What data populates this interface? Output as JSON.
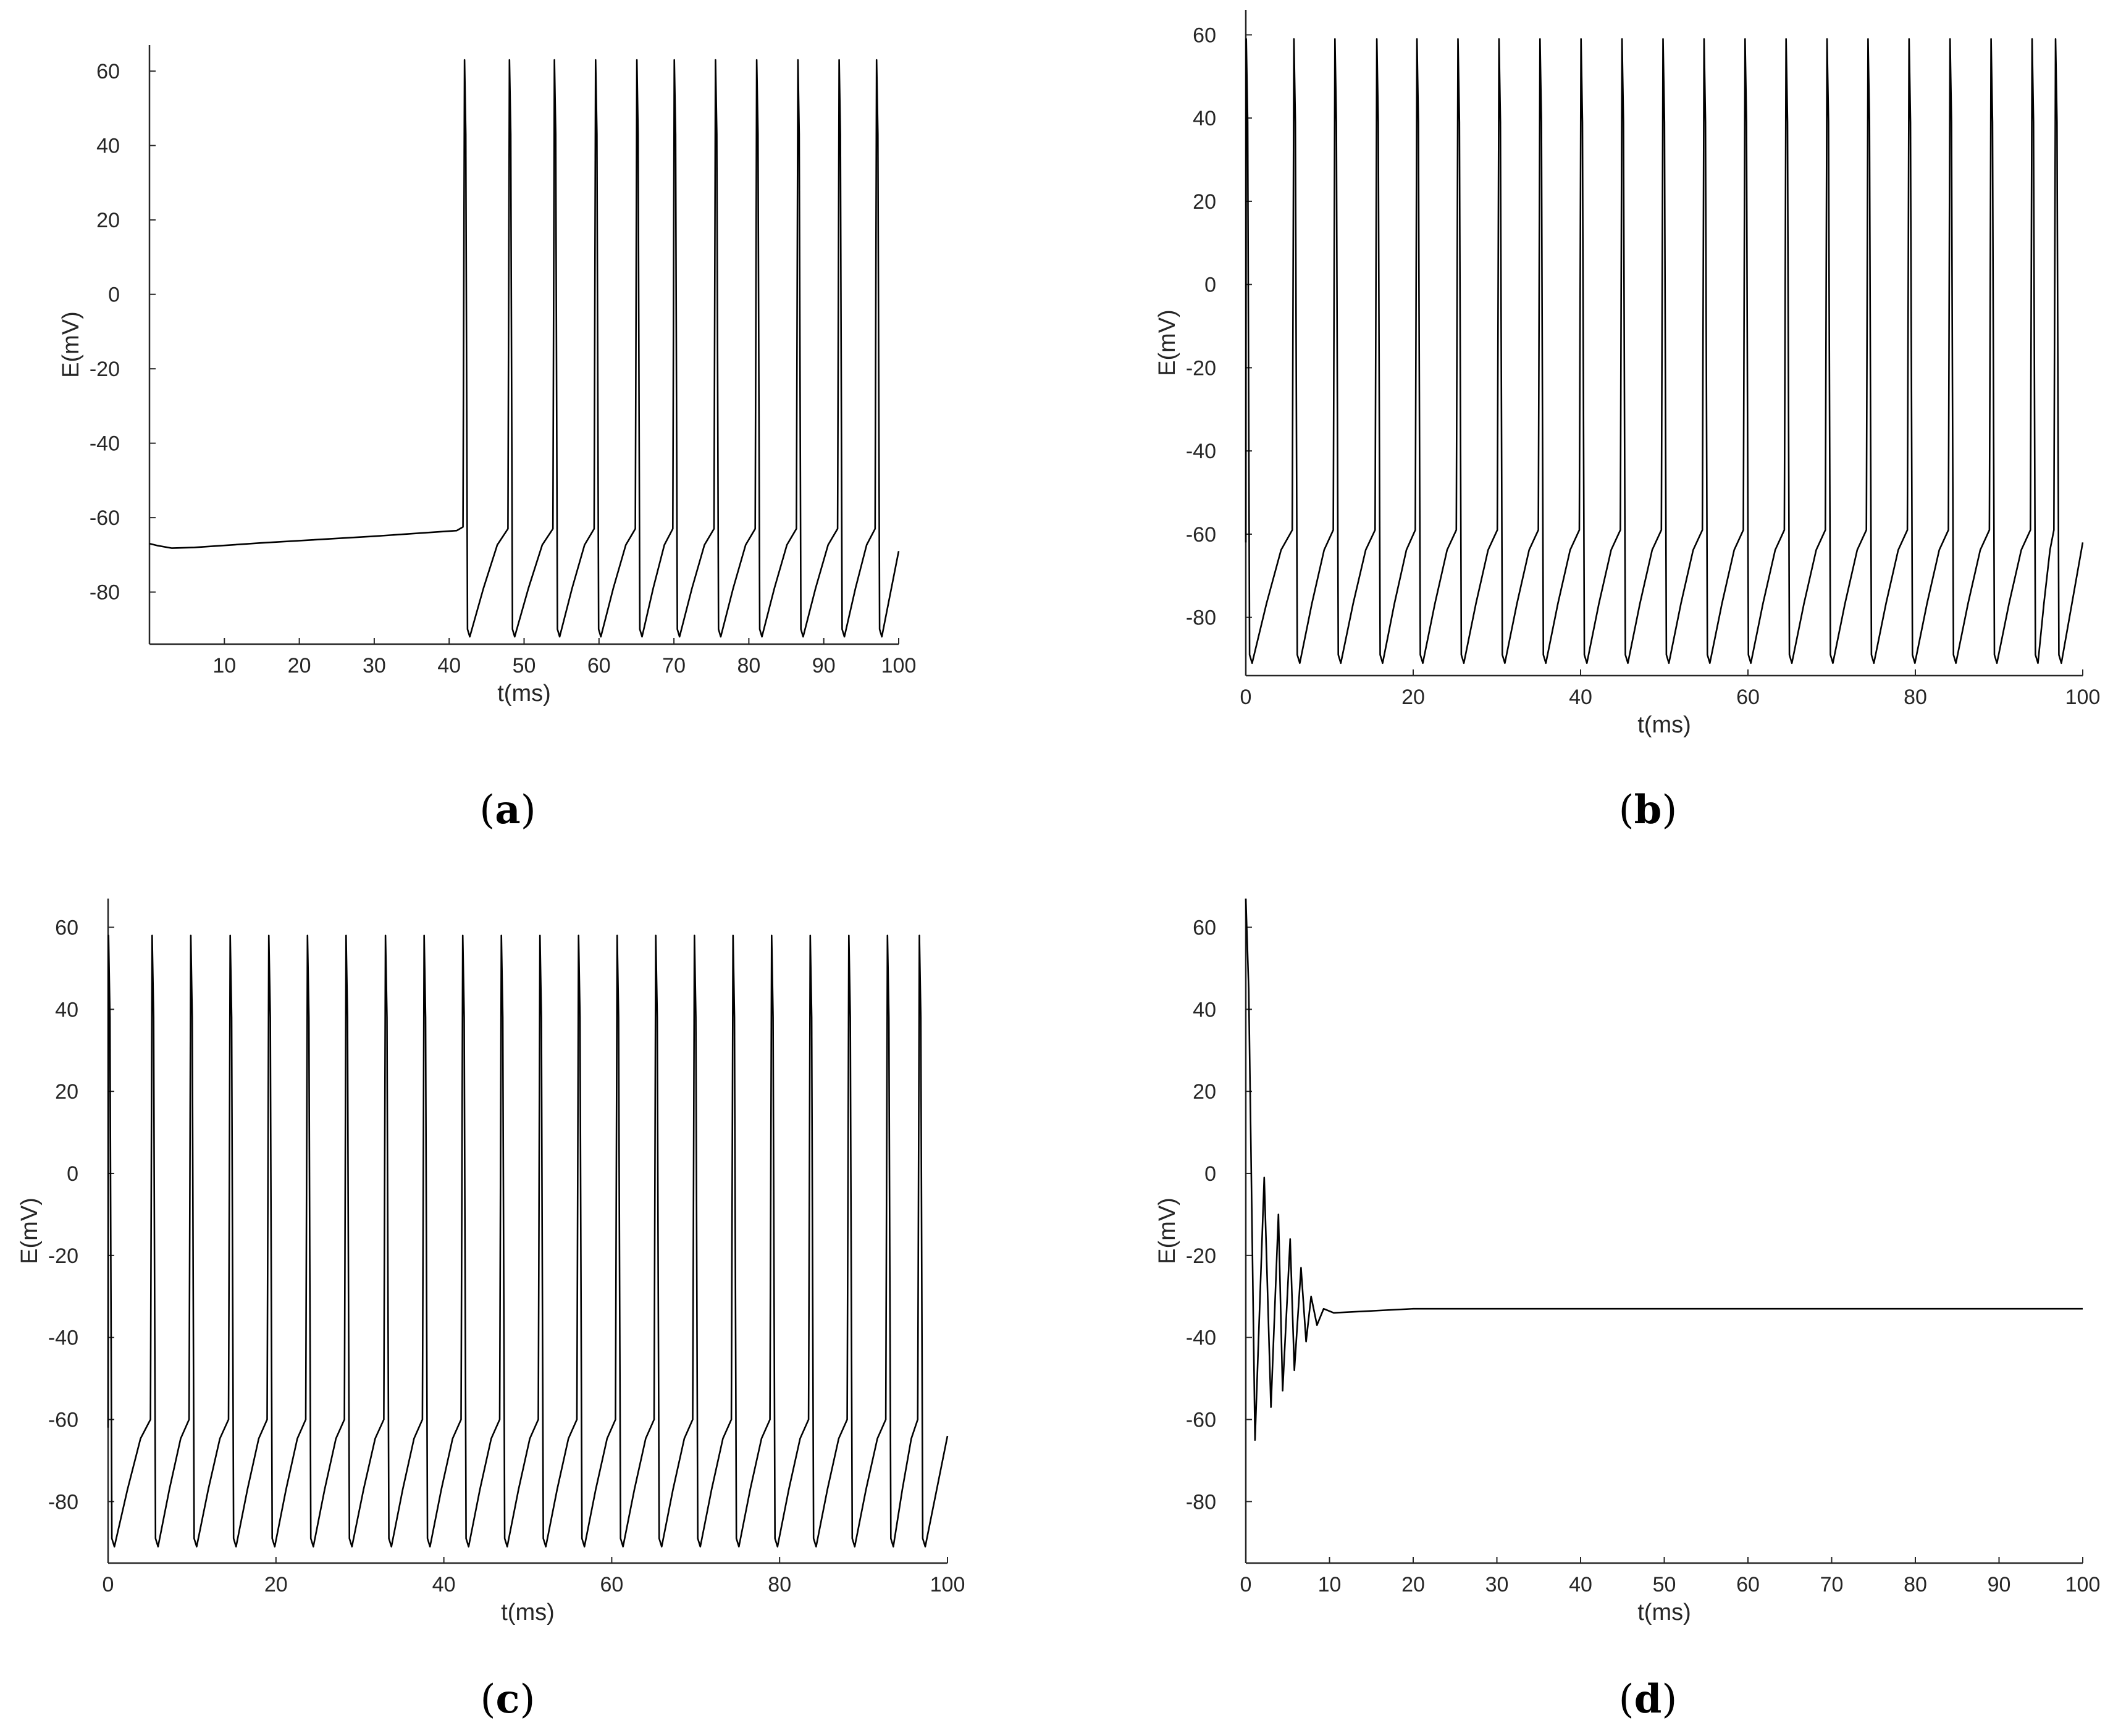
{
  "chart_data": [
    {
      "panel": "a",
      "type": "line",
      "xlabel": "t(ms)",
      "ylabel": "E(mV)",
      "xlim": [
        0,
        100
      ],
      "ylim": [
        -94,
        67
      ],
      "xticks": [
        10,
        20,
        30,
        40,
        50,
        60,
        70,
        80,
        90,
        100
      ],
      "yticks": [
        60,
        40,
        20,
        0,
        -20,
        -40,
        -60,
        -80
      ],
      "behavior": "resting drift from -67 mV to about -63 mV, then repetitive spiking starting near t = 42 ms",
      "series": [
        {
          "spike_times": [
            42,
            48,
            54,
            59.5,
            65,
            70,
            75.5,
            81,
            86.5,
            92,
            97
          ],
          "spike_peak": 63,
          "trough": -92,
          "threshold": -63,
          "end_value": -69
        }
      ]
    },
    {
      "panel": "b",
      "type": "line",
      "xlabel": "t(ms)",
      "ylabel": "E(mV)",
      "xlim": [
        0,
        100
      ],
      "ylim": [
        -94,
        66
      ],
      "xticks": [
        0,
        20,
        40,
        60,
        80,
        100
      ],
      "yticks": [
        60,
        40,
        20,
        0,
        -20,
        -40,
        -60,
        -80
      ],
      "behavior": "periodic spiking over the whole interval",
      "series": [
        {
          "spike_times": [
            0,
            5.7,
            10.6,
            15.6,
            20.4,
            25.3,
            30.2,
            35.1,
            40,
            44.9,
            49.8,
            54.7,
            59.6,
            64.5,
            69.4,
            74.3,
            79.2,
            84.1,
            89,
            93.9,
            96.7
          ],
          "spike_peak": 59,
          "trough": -91,
          "threshold": -59,
          "end_value": -62
        }
      ]
    },
    {
      "panel": "c",
      "type": "line",
      "xlabel": "t(ms)",
      "ylabel": "E(mV)",
      "xlim": [
        0,
        100
      ],
      "ylim": [
        -95,
        67
      ],
      "xticks": [
        0,
        20,
        40,
        60,
        80,
        100
      ],
      "yticks": [
        60,
        40,
        20,
        0,
        -20,
        -40,
        -60,
        -80
      ],
      "behavior": "periodic spiking over the whole interval",
      "series": [
        {
          "spike_times": [
            0,
            5.2,
            9.8,
            14.5,
            19.1,
            23.7,
            28.3,
            33,
            37.6,
            42.2,
            46.8,
            51.4,
            56,
            60.6,
            65.2,
            69.8,
            74.4,
            79,
            83.6,
            88.2,
            92.8,
            96.6
          ],
          "spike_peak": 58,
          "trough": -91,
          "threshold": -60,
          "end_value": -64
        }
      ]
    },
    {
      "panel": "d",
      "type": "line",
      "xlabel": "t(ms)",
      "ylabel": "E(mV)",
      "xlim": [
        0,
        100
      ],
      "ylim": [
        -95,
        67
      ],
      "xticks": [
        0,
        10,
        20,
        30,
        40,
        50,
        60,
        70,
        80,
        90,
        100
      ],
      "yticks": [
        60,
        40,
        20,
        0,
        -20,
        -40,
        -60,
        -80
      ],
      "behavior": "damped oscillation settling to a constant level",
      "series": [
        {
          "points": [
            [
              0,
              67
            ],
            [
              0.35,
              45
            ],
            [
              1.1,
              -65
            ],
            [
              2.2,
              -1
            ],
            [
              3,
              -57
            ],
            [
              3.9,
              -10
            ],
            [
              4.4,
              -53
            ],
            [
              5.3,
              -16
            ],
            [
              5.8,
              -48
            ],
            [
              6.6,
              -23
            ],
            [
              7.2,
              -41
            ],
            [
              7.8,
              -30
            ],
            [
              8.5,
              -37
            ],
            [
              9.3,
              -33
            ],
            [
              10.5,
              -34
            ],
            [
              20,
              -33
            ],
            [
              100,
              -33
            ]
          ]
        }
      ]
    }
  ],
  "panel_labels": [
    {
      "open": "(",
      "letter": "a",
      "close": ")"
    },
    {
      "open": "(",
      "letter": "b",
      "close": ")"
    },
    {
      "open": "(",
      "letter": "c",
      "close": ")"
    },
    {
      "open": "(",
      "letter": "d",
      "close": ")"
    }
  ]
}
